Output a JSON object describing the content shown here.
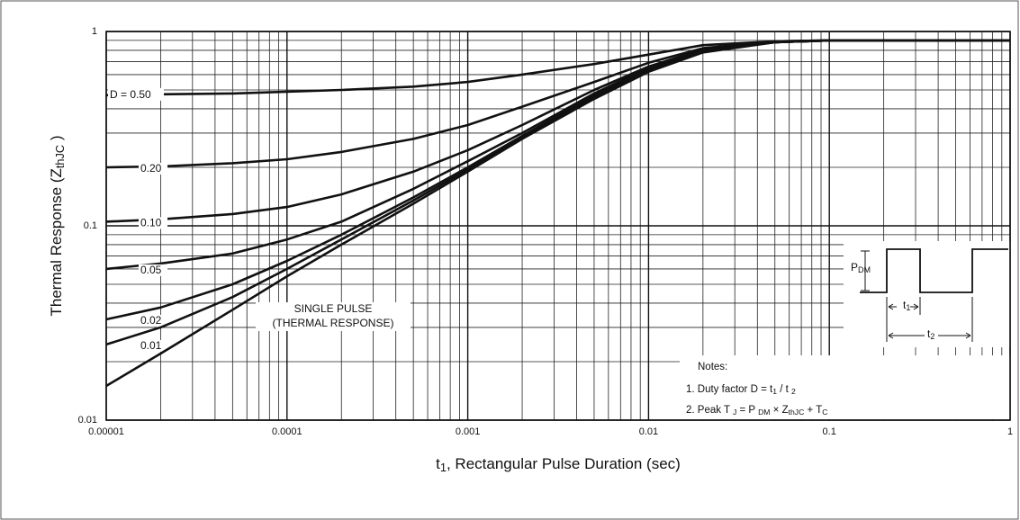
{
  "chart_data": {
    "type": "line",
    "x": [
      1e-05,
      2e-05,
      5e-05,
      0.0001,
      0.0002,
      0.0005,
      0.001,
      0.002,
      0.005,
      0.01,
      0.02,
      0.05,
      0.1,
      1
    ],
    "series": [
      {
        "name": "D = 0.50",
        "color": "#111111",
        "values": [
          0.47,
          0.475,
          0.48,
          0.49,
          0.5,
          0.52,
          0.55,
          0.6,
          0.68,
          0.76,
          0.85,
          0.89,
          0.9,
          0.9
        ]
      },
      {
        "name": "0.20",
        "color": "#111111",
        "values": [
          0.2,
          0.202,
          0.21,
          0.22,
          0.24,
          0.28,
          0.33,
          0.41,
          0.55,
          0.69,
          0.82,
          0.89,
          0.9,
          0.9
        ]
      },
      {
        "name": "0.10",
        "color": "#111111",
        "values": [
          0.105,
          0.108,
          0.115,
          0.125,
          0.145,
          0.19,
          0.245,
          0.33,
          0.5,
          0.66,
          0.81,
          0.88,
          0.9,
          0.9
        ]
      },
      {
        "name": "0.05",
        "color": "#111111",
        "values": [
          0.06,
          0.064,
          0.072,
          0.085,
          0.105,
          0.155,
          0.215,
          0.3,
          0.48,
          0.65,
          0.8,
          0.88,
          0.9,
          0.9
        ]
      },
      {
        "name": "0.02",
        "color": "#111111",
        "values": [
          0.033,
          0.038,
          0.05,
          0.066,
          0.09,
          0.14,
          0.2,
          0.29,
          0.47,
          0.64,
          0.8,
          0.88,
          0.9,
          0.9
        ]
      },
      {
        "name": "0.01",
        "color": "#111111",
        "values": [
          0.0245,
          0.03,
          0.043,
          0.06,
          0.085,
          0.135,
          0.195,
          0.285,
          0.46,
          0.63,
          0.79,
          0.88,
          0.9,
          0.9
        ]
      },
      {
        "name": "SINGLE PULSE",
        "note": "(THERMAL RESPONSE)",
        "color": "#111111",
        "values": [
          0.015,
          0.022,
          0.037,
          0.055,
          0.08,
          0.13,
          0.19,
          0.28,
          0.45,
          0.62,
          0.78,
          0.88,
          0.9,
          0.9
        ]
      }
    ],
    "xlog": true,
    "ylog": true,
    "grid": true,
    "xlim": [
      1e-05,
      1
    ],
    "xticks": [
      {
        "value": 1e-05,
        "label": "0.00001"
      },
      0.0001,
      0.001,
      0.01,
      0.1,
      1
    ],
    "ylim": [
      0.01,
      1
    ],
    "yticks": [
      0.01,
      0.1,
      1
    ],
    "x_label": [
      "t",
      "1",
      ", Rectangular Pulse Duration (sec)"
    ],
    "y_label": [
      "Thermal Response  (Z",
      "thJC",
      " )"
    ],
    "inset": {
      "pdm": [
        "P",
        "DM"
      ],
      "t1": [
        "t",
        "1"
      ],
      "t2": [
        "t",
        "2"
      ]
    },
    "notes": {
      "title": "Notes:",
      "lines": [
        [
          "1. Duty factor D =  t",
          "1",
          " / t ",
          "2"
        ],
        [
          "2. Peak T ",
          "J",
          " = P ",
          "DM",
          " × Z",
          "thJC",
          " + T",
          "C"
        ]
      ]
    }
  }
}
